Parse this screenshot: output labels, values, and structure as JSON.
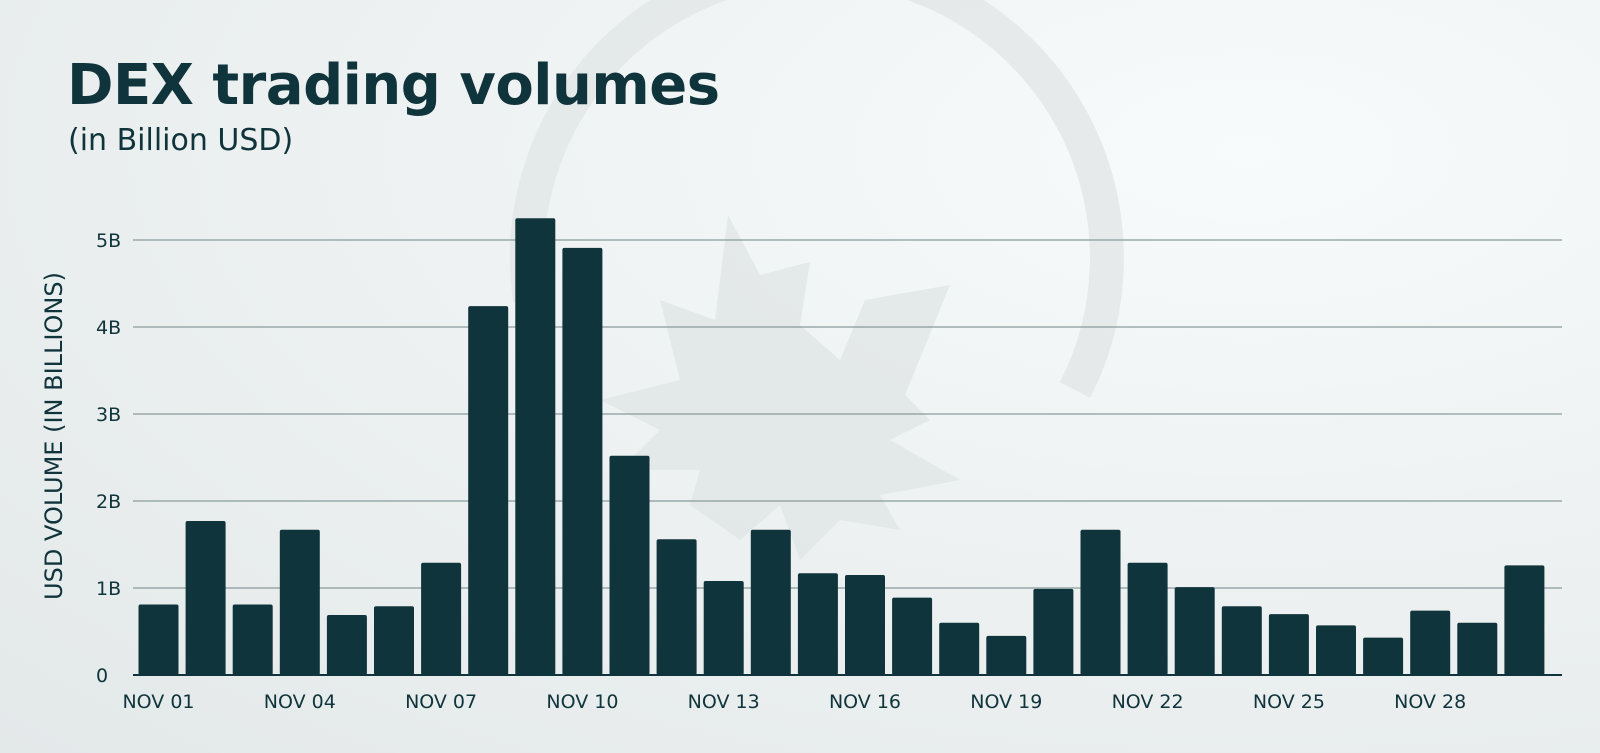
{
  "title": "DEX trading volumes",
  "subtitle": "(in Billion USD)",
  "chart_data": {
    "type": "bar",
    "ylabel": "USD VOLUME (IN BILLIONS)",
    "xlabel": "",
    "ylim": [
      0,
      5
    ],
    "yticks": [
      {
        "value": 0,
        "label": "0"
      },
      {
        "value": 1,
        "label": "1B"
      },
      {
        "value": 2,
        "label": "2B"
      },
      {
        "value": 3,
        "label": "3B"
      },
      {
        "value": 4,
        "label": "4B"
      },
      {
        "value": 5,
        "label": "5B"
      }
    ],
    "grid": "horizontal",
    "bar_color": "#10343b",
    "categories": [
      "NOV 01",
      "NOV 02",
      "NOV 03",
      "NOV 04",
      "NOV 05",
      "NOV 06",
      "NOV 07",
      "NOV 08",
      "NOV 09",
      "NOV 10",
      "NOV 11",
      "NOV 12",
      "NOV 13",
      "NOV 14",
      "NOV 15",
      "NOV 16",
      "NOV 17",
      "NOV 18",
      "NOV 19",
      "NOV 20",
      "NOV 21",
      "NOV 22",
      "NOV 23",
      "NOV 24",
      "NOV 25",
      "NOV 26",
      "NOV 27",
      "NOV 28",
      "NOV 29",
      "NOV 30"
    ],
    "xtick_labels": [
      {
        "index": 0,
        "label": "NOV 01"
      },
      {
        "index": 3,
        "label": "NOV 04"
      },
      {
        "index": 6,
        "label": "NOV 07"
      },
      {
        "index": 9,
        "label": "NOV 10"
      },
      {
        "index": 12,
        "label": "NOV 13"
      },
      {
        "index": 15,
        "label": "NOV 16"
      },
      {
        "index": 18,
        "label": "NOV 19"
      },
      {
        "index": 21,
        "label": "NOV 22"
      },
      {
        "index": 24,
        "label": "NOV 25"
      },
      {
        "index": 27,
        "label": "NOV 28"
      }
    ],
    "values": [
      0.81,
      1.77,
      0.81,
      1.67,
      0.69,
      0.79,
      1.29,
      4.24,
      5.25,
      4.91,
      2.52,
      1.56,
      1.08,
      1.67,
      1.17,
      1.15,
      0.89,
      0.6,
      0.45,
      0.99,
      1.67,
      1.29,
      1.01,
      0.79,
      0.7,
      0.57,
      0.43,
      0.74,
      0.6,
      1.26
    ]
  }
}
